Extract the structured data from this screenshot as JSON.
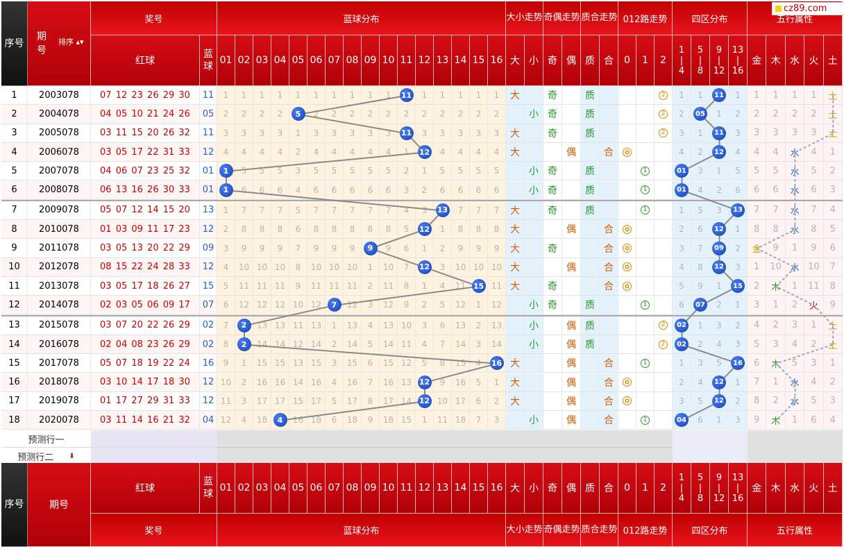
{
  "logo": {
    "text": "cz89.com"
  },
  "headers": {
    "seq": "序号",
    "period": "期号",
    "sort": "排序",
    "prize": "奖号",
    "red": "红球",
    "blue": "蓝球",
    "blue_dist": "蓝球分布",
    "bigsmall": "大小走势",
    "oddeven": "奇偶走势",
    "primecomp": "质合走势",
    "road012": "012路走势",
    "fourzone": "四区分布",
    "wuxing": "五行属性",
    "numbers": [
      "01",
      "02",
      "03",
      "04",
      "05",
      "06",
      "07",
      "08",
      "09",
      "10",
      "11",
      "12",
      "13",
      "14",
      "15",
      "16"
    ],
    "bs": [
      "大",
      "小"
    ],
    "oe": [
      "奇",
      "偶"
    ],
    "pc": [
      "质",
      "合"
    ],
    "r012": [
      "0",
      "1",
      "2"
    ],
    "zones": [
      "1\n|\n4",
      "5\n|\n8",
      "9\n|\n12",
      "13\n|\n16"
    ],
    "wx": [
      "金",
      "木",
      "水",
      "火",
      "土"
    ]
  },
  "rows": [
    {
      "seq": "1",
      "period": "2003078",
      "red": "07 12 23 26 29 30",
      "blue": "11",
      "bl": [
        1,
        1,
        1,
        1,
        1,
        1,
        1,
        1,
        1,
        1,
        "B",
        1,
        1,
        1,
        1,
        1
      ],
      "bs": "大",
      "oe": "奇",
      "pc": "质",
      "r": 2,
      "zone": [
        1,
        1,
        "B",
        1
      ],
      "wx": [
        "1",
        "1",
        "1",
        "1",
        "土"
      ],
      "wxi": 4
    },
    {
      "seq": "2",
      "period": "2004078",
      "red": "04 05 10 21 24 26",
      "blue": "05",
      "bl": [
        2,
        2,
        2,
        2,
        "B",
        2,
        2,
        2,
        2,
        2,
        2,
        2,
        2,
        2,
        2,
        2
      ],
      "bs": "小",
      "oe": "奇",
      "pc": "质",
      "r": 2,
      "zone": [
        2,
        "B",
        1,
        2
      ],
      "wx": [
        "2",
        "2",
        "2",
        "2",
        "土"
      ],
      "wxi": 4
    },
    {
      "seq": "3",
      "period": "2005078",
      "red": "03 11 15 20 26 32",
      "blue": "11",
      "bl": [
        3,
        3,
        3,
        3,
        1,
        3,
        3,
        3,
        3,
        3,
        "B",
        3,
        3,
        3,
        3,
        3
      ],
      "bs": "大",
      "oe": "奇",
      "pc": "质",
      "r": 2,
      "zone": [
        3,
        1,
        "B",
        3
      ],
      "wx": [
        "3",
        "3",
        "3",
        "3",
        "土"
      ],
      "wxi": 4
    },
    {
      "seq": "4",
      "period": "2006078",
      "red": "03 05 17 22 31 33",
      "blue": "12",
      "bl": [
        4,
        4,
        4,
        4,
        2,
        4,
        4,
        4,
        4,
        4,
        1,
        "B",
        4,
        4,
        4,
        4
      ],
      "bs": "大",
      "oe": "偶",
      "pc": "合",
      "r": 0,
      "zone": [
        4,
        2,
        "B",
        4
      ],
      "wx": [
        "4",
        "4",
        "水",
        "4",
        "1"
      ],
      "wxi": 2
    },
    {
      "seq": "5",
      "period": "2007078",
      "red": "04 06 07 23 25 32",
      "blue": "01",
      "bl": [
        "B",
        5,
        5,
        5,
        3,
        5,
        5,
        5,
        5,
        5,
        2,
        1,
        5,
        5,
        5,
        5
      ],
      "bs": "小",
      "oe": "奇",
      "pc": "质",
      "r": 1,
      "zone": [
        "B",
        3,
        1,
        5
      ],
      "wx": [
        "5",
        "5",
        "水",
        "5",
        "2"
      ],
      "wxi": 2
    },
    {
      "seq": "6",
      "period": "2008078",
      "red": "06 13 16 26 30 33",
      "blue": "01",
      "bl": [
        "B",
        6,
        6,
        6,
        4,
        6,
        6,
        6,
        6,
        6,
        3,
        2,
        6,
        6,
        6,
        6
      ],
      "bs": "小",
      "oe": "奇",
      "pc": "质",
      "r": 1,
      "zone": [
        "B",
        4,
        2,
        6
      ],
      "wx": [
        "6",
        "6",
        "水",
        "6",
        "3"
      ],
      "wxi": 2
    },
    {
      "seq": "7",
      "period": "2009078",
      "red": "05 07 12 14 15 20",
      "blue": "13",
      "bl": [
        1,
        7,
        7,
        7,
        5,
        7,
        7,
        7,
        7,
        7,
        4,
        3,
        "B",
        7,
        7,
        7
      ],
      "bs": "大",
      "oe": "奇",
      "pc": "质",
      "r": 1,
      "zone": [
        1,
        5,
        3,
        "B"
      ],
      "wx": [
        "7",
        "7",
        "水",
        "7",
        "4"
      ],
      "wxi": 2
    },
    {
      "seq": "8",
      "period": "2010078",
      "red": "01 03 09 11 17 23",
      "blue": "12",
      "bl": [
        2,
        8,
        8,
        8,
        6,
        8,
        8,
        8,
        8,
        8,
        5,
        "B",
        1,
        8,
        8,
        8
      ],
      "bs": "大",
      "oe": "偶",
      "pc": "合",
      "r": 0,
      "zone": [
        2,
        6,
        "B",
        1
      ],
      "wx": [
        "8",
        "8",
        "水",
        "8",
        "5"
      ],
      "wxi": 2
    },
    {
      "seq": "9",
      "period": "2011078",
      "red": "03 05 13 20 22 29",
      "blue": "09",
      "bl": [
        3,
        9,
        9,
        9,
        7,
        9,
        9,
        9,
        "B",
        9,
        6,
        1,
        2,
        9,
        9,
        9
      ],
      "bs": "大",
      "oe": "奇",
      "pc": "合",
      "r": 0,
      "zone": [
        3,
        7,
        "B",
        2
      ],
      "wx": [
        "金",
        "9",
        "1",
        "9",
        "6"
      ],
      "wxi": 0
    },
    {
      "seq": "10",
      "period": "2012078",
      "red": "08 15 22 24 28 33",
      "blue": "12",
      "bl": [
        4,
        10,
        10,
        10,
        8,
        10,
        10,
        10,
        1,
        10,
        7,
        "B",
        3,
        10,
        10,
        10
      ],
      "bs": "大",
      "oe": "偶",
      "pc": "合",
      "r": 0,
      "zone": [
        4,
        8,
        "B",
        3
      ],
      "wx": [
        "1",
        "10",
        "水",
        "10",
        "7"
      ],
      "wxi": 2
    },
    {
      "seq": "11",
      "period": "2013078",
      "red": "03 05 17 18 26 27",
      "blue": "15",
      "bl": [
        5,
        11,
        11,
        11,
        9,
        11,
        11,
        11,
        2,
        11,
        8,
        1,
        4,
        11,
        "B",
        11
      ],
      "bs": "大",
      "oe": "奇",
      "pc": "合",
      "r": 0,
      "zone": [
        5,
        9,
        1,
        "B"
      ],
      "wx": [
        "2",
        "木",
        "1",
        "11",
        "8"
      ],
      "wxi": 1
    },
    {
      "seq": "12",
      "period": "2014078",
      "red": "02 03 05 06 09 17",
      "blue": "07",
      "bl": [
        6,
        12,
        12,
        12,
        10,
        12,
        "B",
        12,
        3,
        12,
        9,
        2,
        5,
        12,
        1,
        12
      ],
      "bs": "小",
      "oe": "奇",
      "pc": "质",
      "r": 1,
      "zone": [
        6,
        "B",
        2,
        1
      ],
      "wx": [
        "3",
        "1",
        "2",
        "火",
        "9"
      ],
      "wxi": 3
    },
    {
      "seq": "13",
      "period": "2015078",
      "red": "03 07 20 22 26 29",
      "blue": "02",
      "bl": [
        7,
        "B",
        13,
        13,
        11,
        13,
        1,
        13,
        4,
        13,
        10,
        3,
        6,
        13,
        2,
        13
      ],
      "bs": "小",
      "oe": "偶",
      "pc": "质",
      "r": 2,
      "zone": [
        "B",
        1,
        3,
        2
      ],
      "wx": [
        "4",
        "2",
        "3",
        "1",
        "土"
      ],
      "wxi": 4
    },
    {
      "seq": "14",
      "period": "2016078",
      "red": "02 04 08 23 26 29",
      "blue": "02",
      "bl": [
        8,
        "B",
        14,
        14,
        12,
        14,
        2,
        14,
        5,
        14,
        11,
        4,
        7,
        14,
        3,
        14
      ],
      "bs": "小",
      "oe": "偶",
      "pc": "质",
      "r": 2,
      "zone": [
        "B",
        2,
        4,
        3
      ],
      "wx": [
        "5",
        "3",
        "4",
        "2",
        "土"
      ],
      "wxi": 4
    },
    {
      "seq": "15",
      "period": "2017078",
      "red": "05 07 18 19 22 24",
      "blue": "16",
      "bl": [
        9,
        1,
        15,
        15,
        13,
        15,
        3,
        15,
        6,
        15,
        12,
        5,
        8,
        15,
        4,
        "B"
      ],
      "bs": "大",
      "oe": "偶",
      "pc": "合",
      "r": 1,
      "zone": [
        1,
        3,
        5,
        "B"
      ],
      "wx": [
        "6",
        "木",
        "5",
        "3",
        "1"
      ],
      "wxi": 1
    },
    {
      "seq": "16",
      "period": "2018078",
      "red": "03 10 14 17 18 30",
      "blue": "12",
      "bl": [
        10,
        2,
        16,
        16,
        14,
        16,
        4,
        16,
        7,
        16,
        13,
        "B",
        9,
        16,
        5,
        1
      ],
      "bs": "大",
      "oe": "偶",
      "pc": "合",
      "r": 0,
      "zone": [
        2,
        4,
        "B",
        1
      ],
      "wx": [
        "7",
        "1",
        "水",
        "4",
        "2"
      ],
      "wxi": 2
    },
    {
      "seq": "17",
      "period": "2019078",
      "red": "01 17 27 29 31 33",
      "blue": "12",
      "bl": [
        11,
        3,
        17,
        17,
        15,
        17,
        5,
        17,
        8,
        17,
        14,
        "B",
        10,
        17,
        6,
        2
      ],
      "bs": "大",
      "oe": "偶",
      "pc": "合",
      "r": 0,
      "zone": [
        3,
        5,
        "B",
        2
      ],
      "wx": [
        "8",
        "2",
        "水",
        "5",
        "3"
      ],
      "wxi": 2
    },
    {
      "seq": "18",
      "period": "2020078",
      "red": "03 11 14 16 21 32",
      "blue": "04",
      "bl": [
        12,
        4,
        18,
        "B",
        16,
        18,
        6,
        18,
        9,
        18,
        15,
        1,
        11,
        18,
        7,
        3
      ],
      "bs": "小",
      "oe": "偶",
      "pc": "合",
      "r": 1,
      "zone": [
        "B",
        6,
        1,
        3
      ],
      "wx": [
        "9",
        "木",
        "1",
        "6",
        "4"
      ],
      "wxi": 1
    }
  ],
  "predict": [
    "预测行一",
    "预测行二"
  ]
}
